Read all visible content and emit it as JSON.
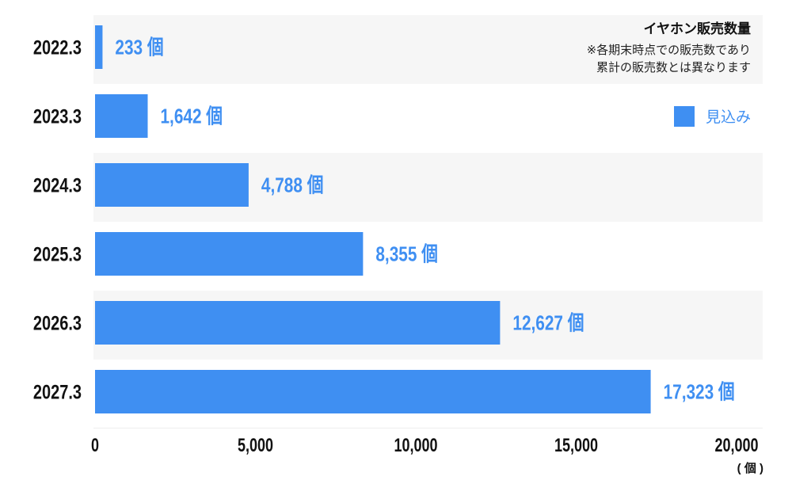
{
  "chart_data": {
    "type": "bar",
    "orientation": "horizontal",
    "title": "イヤホン販売数量",
    "note": [
      "※各期末時点での販売数であり",
      "累計の販売数とは異なります"
    ],
    "categories": [
      "2022.3",
      "2023.3",
      "2024.3",
      "2025.3",
      "2026.3",
      "2027.3"
    ],
    "series": [
      {
        "name": "見込み",
        "values": [
          233,
          1642,
          4788,
          8355,
          12627,
          17323
        ],
        "color": "#3f8ff2"
      }
    ],
    "data_labels": [
      "233 個",
      "1,642 個",
      "4,788 個",
      "8,355 個",
      "12,627 個",
      "17,323 個"
    ],
    "x_ticks": [
      "0",
      "5,000",
      "10,000",
      "15,000",
      "20,000"
    ],
    "xlim": [
      0,
      20000
    ],
    "xunit": "( 個 )",
    "legend_position": "top-right",
    "grid": false,
    "row_band_color": "#f6f6f6"
  }
}
